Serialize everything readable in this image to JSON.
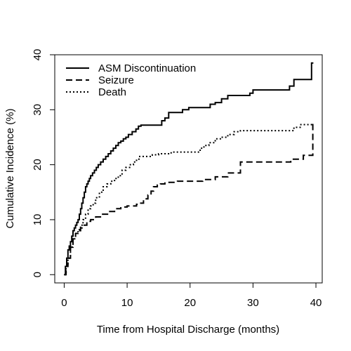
{
  "chart_data": {
    "type": "line",
    "step": true,
    "xlabel": "Time from Hospital Discharge (months)",
    "ylabel": "Cumulative Incidence (%)",
    "xlim": [
      -1.5,
      41
    ],
    "ylim": [
      -1.5,
      40
    ],
    "xticks": [
      0,
      10,
      20,
      30,
      40
    ],
    "yticks": [
      0,
      10,
      20,
      30,
      40
    ],
    "grid": false,
    "legend_position": "top-left",
    "series": [
      {
        "name": "ASM Discontinuation",
        "style": "solid",
        "x": [
          0,
          0.2,
          0.4,
          0.6,
          0.8,
          1.0,
          1.2,
          1.4,
          1.6,
          1.8,
          2.0,
          2.2,
          2.4,
          2.6,
          2.8,
          3.0,
          3.2,
          3.4,
          3.6,
          3.8,
          4.0,
          4.2,
          4.5,
          4.8,
          5.1,
          5.4,
          5.8,
          6.2,
          6.6,
          7.0,
          7.4,
          7.8,
          8.2,
          8.6,
          9.0,
          9.4,
          9.8,
          10.2,
          10.8,
          11.4,
          11.8,
          12.2,
          13.5,
          15.5,
          16.0,
          16.6,
          18.0,
          18.8,
          19.8,
          23.2,
          24.0,
          25.0,
          26.0,
          27.0,
          29.5,
          30.0,
          35.8,
          36.5,
          39.3,
          39.6
        ],
        "y": [
          0,
          1.5,
          3.0,
          4.5,
          5.2,
          6.0,
          7.0,
          8.0,
          8.5,
          9.0,
          9.5,
          10.0,
          11.0,
          12.0,
          13.0,
          14.0,
          15.0,
          16.0,
          16.5,
          17.0,
          17.5,
          18.0,
          18.5,
          19.0,
          19.5,
          20.0,
          20.5,
          21.0,
          21.5,
          22.0,
          22.5,
          23.0,
          23.5,
          24.0,
          24.3,
          24.7,
          25.0,
          25.5,
          26.0,
          26.5,
          27.0,
          27.2,
          27.2,
          28.0,
          28.5,
          29.5,
          29.5,
          30.0,
          30.4,
          31.0,
          31.3,
          32.0,
          32.6,
          32.6,
          33.0,
          33.6,
          34.3,
          35.5,
          38.5,
          38.5
        ]
      },
      {
        "name": "Seizure",
        "style": "dashed",
        "x": [
          0,
          0.3,
          0.6,
          1.0,
          1.4,
          1.8,
          2.2,
          2.6,
          3.0,
          3.6,
          4.2,
          5.0,
          6.0,
          7.0,
          8.0,
          9.0,
          10.0,
          11.5,
          12.0,
          12.6,
          13.3,
          13.8,
          14.2,
          14.8,
          15.3,
          16.0,
          18.0,
          22.0,
          24.0,
          26.0,
          28.0,
          35.8,
          36.0,
          38.0,
          39.5
        ],
        "y": [
          0,
          1.5,
          3.0,
          5.0,
          6.5,
          7.5,
          8.0,
          8.5,
          9.0,
          9.7,
          10.0,
          10.5,
          11.0,
          11.5,
          12.0,
          12.3,
          12.5,
          12.8,
          13.0,
          13.8,
          14.5,
          15.2,
          16.0,
          16.3,
          16.5,
          16.8,
          17.0,
          17.3,
          17.8,
          18.5,
          20.5,
          20.5,
          21.0,
          21.7,
          27.5
        ]
      },
      {
        "name": "Death",
        "style": "dotted",
        "x": [
          0,
          0.3,
          0.6,
          1.0,
          1.4,
          1.8,
          2.2,
          2.6,
          3.0,
          3.4,
          3.8,
          4.2,
          4.6,
          5.0,
          5.6,
          6.2,
          6.8,
          7.4,
          8.0,
          8.6,
          9.2,
          9.8,
          10.4,
          11.0,
          11.5,
          12.0,
          13.5,
          14.0,
          15.0,
          17.0,
          21.0,
          21.6,
          22.2,
          23.0,
          24.0,
          25.0,
          26.0,
          27.0,
          28.0,
          36.5,
          37.5,
          39.5
        ],
        "y": [
          0,
          1.5,
          3.0,
          5.0,
          6.5,
          7.5,
          8.2,
          9.0,
          10.0,
          11.0,
          12.0,
          12.5,
          13.0,
          14.0,
          15.0,
          16.0,
          16.5,
          17.0,
          17.5,
          18.0,
          19.0,
          19.5,
          20.0,
          20.5,
          21.0,
          21.5,
          21.5,
          21.8,
          22.0,
          22.3,
          22.3,
          23.0,
          23.5,
          24.0,
          24.7,
          25.0,
          25.5,
          26.0,
          26.2,
          26.8,
          27.3,
          27.5
        ]
      }
    ]
  }
}
